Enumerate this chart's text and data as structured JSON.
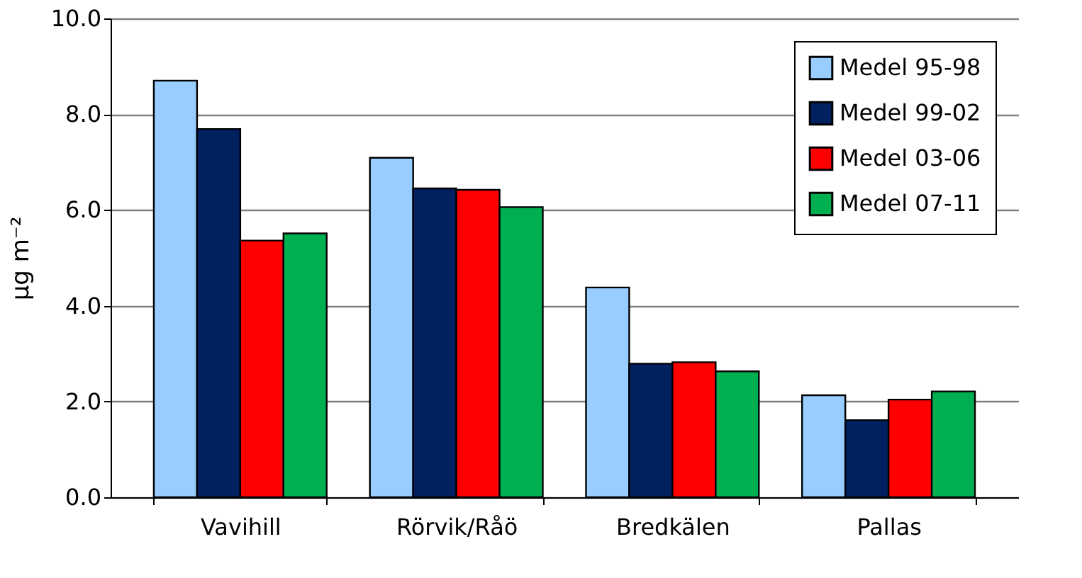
{
  "chart_data": {
    "type": "bar",
    "ylabel": "µg m⁻²",
    "categories": [
      "Vavihill",
      "Rörvik/Råö",
      "Bredkälen",
      "Pallas"
    ],
    "series": [
      {
        "name": "Medel 95-98",
        "color": "#99ccff",
        "values": [
          8.7,
          7.09,
          4.38,
          2.13
        ]
      },
      {
        "name": "Medel 99-02",
        "color": "#002060",
        "values": [
          7.69,
          6.45,
          2.79,
          1.61
        ]
      },
      {
        "name": "Medel 03-06",
        "color": "#ff0000",
        "values": [
          5.36,
          6.42,
          2.82,
          2.04
        ]
      },
      {
        "name": "Medel 07-11",
        "color": "#00b050",
        "values": [
          5.51,
          6.06,
          2.63,
          2.21
        ]
      }
    ],
    "ylim": [
      0,
      10
    ],
    "yticks": [
      {
        "value": 0,
        "label": "0.0"
      },
      {
        "value": 2,
        "label": "2.0"
      },
      {
        "value": 4,
        "label": "4.0"
      },
      {
        "value": 6,
        "label": "6.0"
      },
      {
        "value": 8,
        "label": "8.0"
      },
      {
        "value": 10,
        "label": "10.0"
      }
    ],
    "grid": "y",
    "legend": "top right"
  }
}
